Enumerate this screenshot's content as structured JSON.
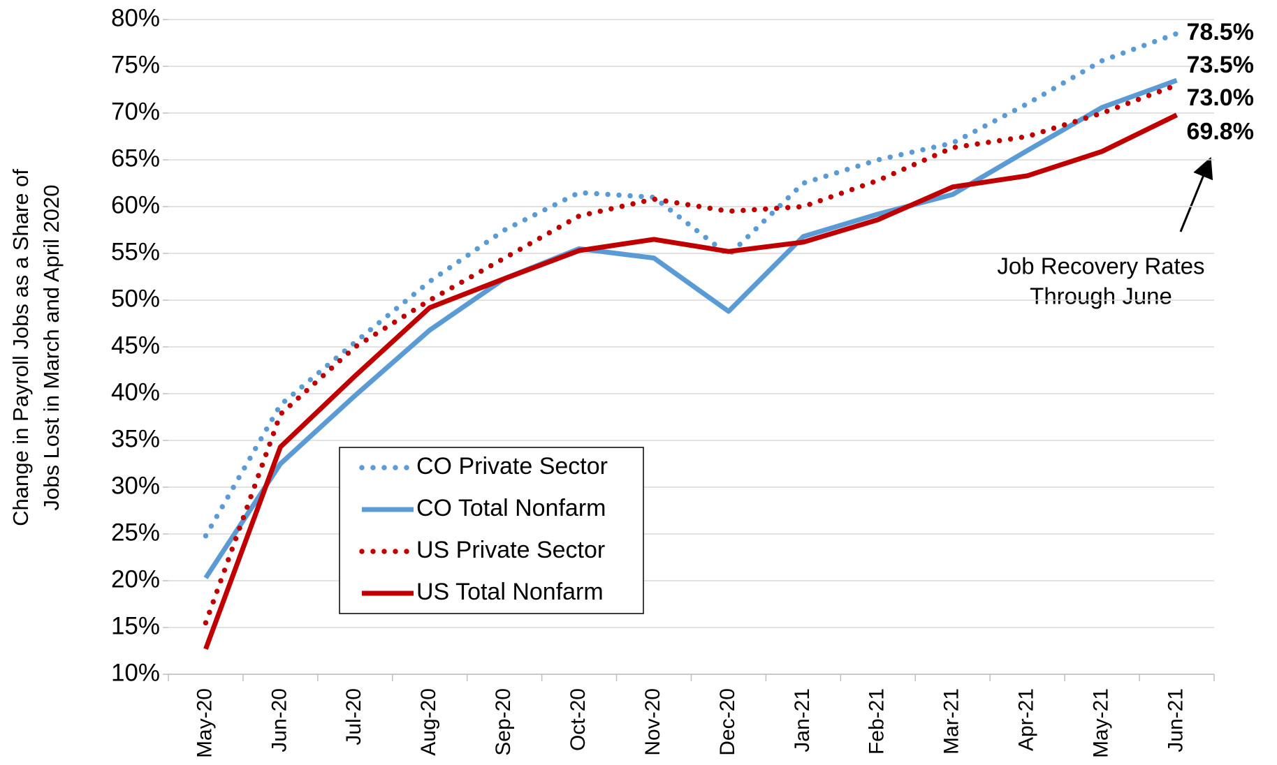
{
  "chart_data": {
    "type": "line",
    "y_label": [
      "Change in Payroll Jobs as a Share of",
      "Jobs Lost in March and April 2020"
    ],
    "categories": [
      "May-20",
      "Jun-20",
      "Jul-20",
      "Aug-20",
      "Sep-20",
      "Oct-20",
      "Nov-20",
      "Dec-20",
      "Jan-21",
      "Feb-21",
      "Mar-21",
      "Apr-21",
      "May-21",
      "Jun-21"
    ],
    "series": [
      {
        "name": "CO Private Sector",
        "color": "#5b9bd5",
        "style": "dotted",
        "values": [
          24.8,
          38.8,
          45.5,
          52,
          57.5,
          61.5,
          61,
          54.8,
          62.5,
          65,
          66.8,
          71,
          75.6,
          78.5
        ],
        "value_labels": [
          null,
          null,
          null,
          null,
          null,
          null,
          null,
          null,
          null,
          null,
          null,
          null,
          null,
          "78.5%"
        ]
      },
      {
        "name": "CO Total Nonfarm",
        "color": "#5b9bd5",
        "style": "solid",
        "values": [
          20.3,
          32.5,
          39.8,
          46.8,
          52.3,
          55.5,
          54.5,
          48.8,
          56.8,
          59.2,
          61.3,
          66,
          70.6,
          73.5
        ],
        "value_labels": [
          null,
          null,
          null,
          null,
          null,
          null,
          null,
          null,
          null,
          null,
          null,
          null,
          null,
          "73.5%"
        ]
      },
      {
        "name": "US Private Sector",
        "color": "#c00000",
        "style": "dotted",
        "values": [
          15.5,
          37.8,
          45,
          50,
          54.5,
          59,
          60.8,
          59.5,
          60,
          62.8,
          66.3,
          67.5,
          70,
          73.0
        ],
        "value_labels": [
          null,
          null,
          null,
          null,
          null,
          null,
          null,
          null,
          null,
          null,
          null,
          null,
          null,
          "73.0%"
        ]
      },
      {
        "name": "US Total Nonfarm",
        "color": "#c00000",
        "style": "solid",
        "values": [
          12.7,
          34.3,
          41.9,
          49.2,
          52.3,
          55.3,
          56.5,
          55.2,
          56.2,
          58.6,
          62.1,
          63.3,
          65.9,
          69.8
        ],
        "value_labels": [
          null,
          null,
          null,
          null,
          null,
          null,
          null,
          null,
          null,
          null,
          null,
          null,
          null,
          "69.8%"
        ]
      }
    ],
    "ylim": [
      10,
      80
    ],
    "yticks": [
      {
        "value": 10,
        "label": "10%"
      },
      {
        "value": 15,
        "label": "15%"
      },
      {
        "value": 20,
        "label": "20%"
      },
      {
        "value": 25,
        "label": "25%"
      },
      {
        "value": 30,
        "label": "30%"
      },
      {
        "value": 35,
        "label": "35%"
      },
      {
        "value": 40,
        "label": "40%"
      },
      {
        "value": 45,
        "label": "45%"
      },
      {
        "value": 50,
        "label": "50%"
      },
      {
        "value": 55,
        "label": "55%"
      },
      {
        "value": 60,
        "label": "60%"
      },
      {
        "value": 65,
        "label": "65%"
      },
      {
        "value": 70,
        "label": "70%"
      },
      {
        "value": 75,
        "label": "75%"
      },
      {
        "value": 80,
        "label": "80%"
      }
    ],
    "grid": true,
    "annotation": [
      "Job Recovery Rates",
      "Through June"
    ]
  }
}
